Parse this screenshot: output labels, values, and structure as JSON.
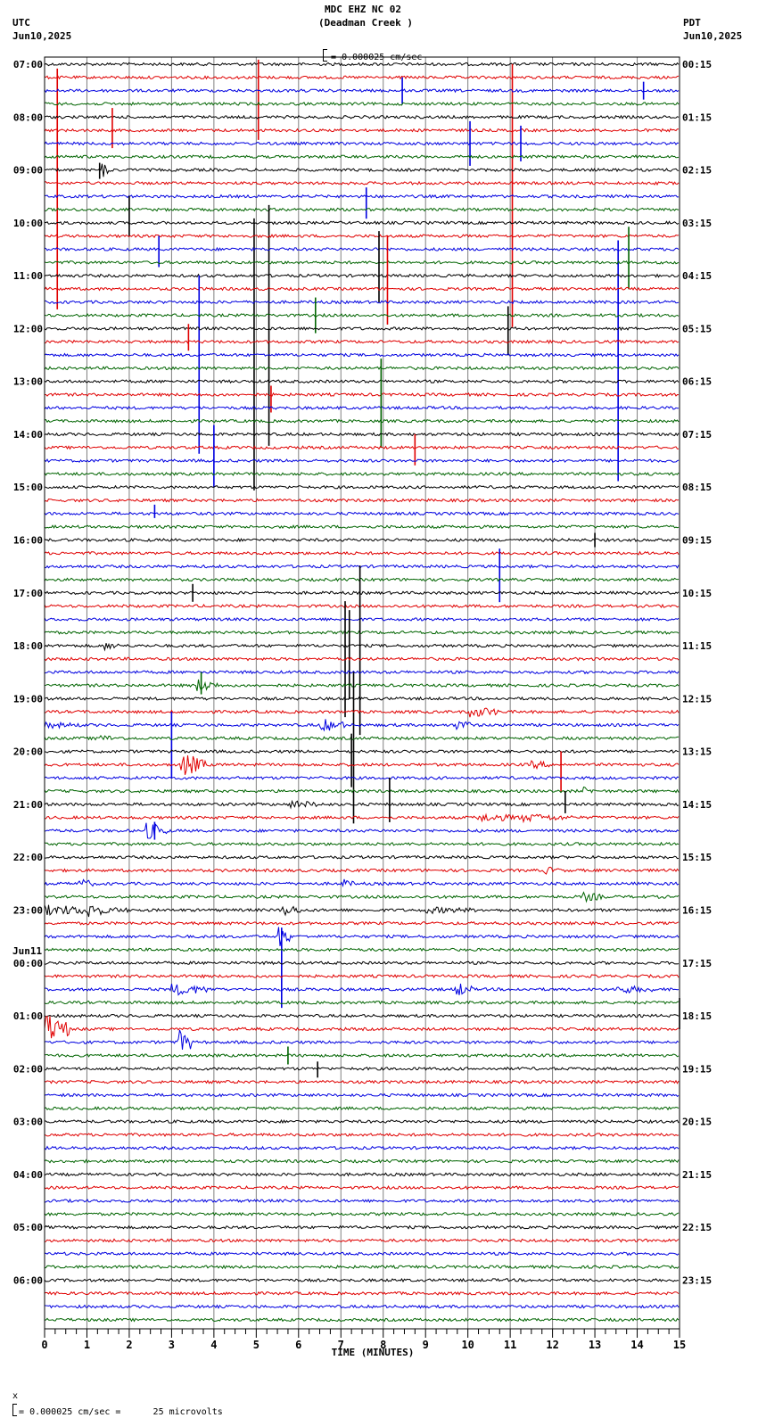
{
  "header": {
    "station": "MDC EHZ NC 02",
    "location": "(Deadman Creek )",
    "left_tz": "UTC",
    "left_date": "Jun10,2025",
    "right_tz": "PDT",
    "right_date": "Jun10,2025",
    "scale_text": "= 0.000025 cm/sec"
  },
  "footer": {
    "xlabel": "TIME (MINUTES)",
    "scale_note": "= 0.000025 cm/sec =      25 microvolts",
    "scale_prefix": "x"
  },
  "colors": {
    "trace_cycle": [
      "#000000",
      "#e00000",
      "#0000e0",
      "#006400"
    ],
    "grid": "#808080",
    "frame": "#000000"
  },
  "chart_data": {
    "type": "line",
    "title": "MDC EHZ NC 02 (Deadman Creek ) — helicorder 24h",
    "xlabel": "TIME (MINUTES)",
    "ylabel": "",
    "xlim": [
      0,
      15
    ],
    "x_ticks": [
      0,
      1,
      2,
      3,
      4,
      5,
      6,
      7,
      8,
      9,
      10,
      11,
      12,
      13,
      14,
      15
    ],
    "grid": true,
    "traces_per_hour": 4,
    "trace_count": 96,
    "left_labels": [
      {
        "row": 0,
        "text": "07:00"
      },
      {
        "row": 4,
        "text": "08:00"
      },
      {
        "row": 8,
        "text": "09:00"
      },
      {
        "row": 12,
        "text": "10:00"
      },
      {
        "row": 16,
        "text": "11:00"
      },
      {
        "row": 20,
        "text": "12:00"
      },
      {
        "row": 24,
        "text": "13:00"
      },
      {
        "row": 28,
        "text": "14:00"
      },
      {
        "row": 32,
        "text": "15:00"
      },
      {
        "row": 36,
        "text": "16:00"
      },
      {
        "row": 40,
        "text": "17:00"
      },
      {
        "row": 44,
        "text": "18:00"
      },
      {
        "row": 48,
        "text": "19:00"
      },
      {
        "row": 52,
        "text": "20:00"
      },
      {
        "row": 56,
        "text": "21:00"
      },
      {
        "row": 60,
        "text": "22:00"
      },
      {
        "row": 64,
        "text": "23:00"
      },
      {
        "row": 68,
        "text": "00:00",
        "date": "Jun11"
      },
      {
        "row": 72,
        "text": "01:00"
      },
      {
        "row": 76,
        "text": "02:00"
      },
      {
        "row": 80,
        "text": "03:00"
      },
      {
        "row": 84,
        "text": "04:00"
      },
      {
        "row": 88,
        "text": "05:00"
      },
      {
        "row": 92,
        "text": "06:00"
      }
    ],
    "right_labels": [
      {
        "row": 0,
        "text": "00:15"
      },
      {
        "row": 4,
        "text": "01:15"
      },
      {
        "row": 8,
        "text": "02:15"
      },
      {
        "row": 12,
        "text": "03:15"
      },
      {
        "row": 16,
        "text": "04:15"
      },
      {
        "row": 20,
        "text": "05:15"
      },
      {
        "row": 24,
        "text": "06:15"
      },
      {
        "row": 28,
        "text": "07:15"
      },
      {
        "row": 32,
        "text": "08:15"
      },
      {
        "row": 36,
        "text": "09:15"
      },
      {
        "row": 40,
        "text": "10:15"
      },
      {
        "row": 44,
        "text": "11:15"
      },
      {
        "row": 48,
        "text": "12:15"
      },
      {
        "row": 52,
        "text": "13:15"
      },
      {
        "row": 56,
        "text": "14:15"
      },
      {
        "row": 60,
        "text": "15:15"
      },
      {
        "row": 64,
        "text": "16:15"
      },
      {
        "row": 68,
        "text": "17:15"
      },
      {
        "row": 72,
        "text": "18:15"
      },
      {
        "row": 76,
        "text": "19:15"
      },
      {
        "row": 80,
        "text": "20:15"
      },
      {
        "row": 84,
        "text": "21:15"
      },
      {
        "row": 88,
        "text": "22:15"
      },
      {
        "row": 92,
        "text": "23:15"
      }
    ],
    "spikes": [
      {
        "row": 1,
        "min": 0.3,
        "up": 10,
        "down": 260
      },
      {
        "row": 1,
        "min": 5.05,
        "up": 20,
        "down": 70
      },
      {
        "row": 1,
        "min": 11.05,
        "up": 15,
        "down": 280
      },
      {
        "row": 2,
        "min": 8.45,
        "up": 15,
        "down": 15
      },
      {
        "row": 2,
        "min": 14.15,
        "up": 10,
        "down": 10
      },
      {
        "row": 5,
        "min": 1.6,
        "up": 25,
        "down": 20
      },
      {
        "row": 6,
        "min": 10.05,
        "up": 25,
        "down": 25
      },
      {
        "row": 6,
        "min": 11.25,
        "up": 20,
        "down": 20
      },
      {
        "row": 8,
        "min": 1.3,
        "up": 8,
        "down": 10
      },
      {
        "row": 10,
        "min": 7.6,
        "up": 10,
        "down": 25
      },
      {
        "row": 12,
        "min": 2.0,
        "up": 30,
        "down": 15
      },
      {
        "row": 12,
        "min": 5.3,
        "up": 20,
        "down": 250
      },
      {
        "row": 12,
        "min": 4.95,
        "up": 5,
        "down": 300
      },
      {
        "row": 14,
        "min": 2.7,
        "up": 15,
        "down": 20
      },
      {
        "row": 14,
        "min": 13.55,
        "up": 10,
        "down": 260
      },
      {
        "row": 15,
        "min": 13.8,
        "up": 40,
        "down": 30
      },
      {
        "row": 16,
        "min": 7.9,
        "up": 50,
        "down": 30
      },
      {
        "row": 17,
        "min": 8.1,
        "up": 60,
        "down": 40
      },
      {
        "row": 18,
        "min": 3.65,
        "up": 30,
        "down": 170
      },
      {
        "row": 19,
        "min": 6.4,
        "up": 20,
        "down": 20
      },
      {
        "row": 20,
        "min": 10.95,
        "up": 25,
        "down": 30
      },
      {
        "row": 21,
        "min": 3.4,
        "up": 20,
        "down": 10
      },
      {
        "row": 25,
        "min": 5.35,
        "up": 10,
        "down": 20
      },
      {
        "row": 27,
        "min": 7.95,
        "up": 70,
        "down": 30
      },
      {
        "row": 29,
        "min": 8.75,
        "up": 15,
        "down": 20
      },
      {
        "row": 30,
        "min": 4.0,
        "up": 40,
        "down": 30
      },
      {
        "row": 34,
        "min": 2.6,
        "up": 10,
        "down": 5
      },
      {
        "row": 36,
        "min": 13.0,
        "up": 8,
        "down": 8
      },
      {
        "row": 38,
        "min": 10.75,
        "up": 20,
        "down": 40
      },
      {
        "row": 40,
        "min": 3.5,
        "up": 10,
        "down": 10
      },
      {
        "row": 44,
        "min": 7.1,
        "up": 50,
        "down": 80
      },
      {
        "row": 44,
        "min": 7.45,
        "up": 90,
        "down": 100
      },
      {
        "row": 44,
        "min": 7.2,
        "up": 40,
        "down": 60
      },
      {
        "row": 47,
        "min": 3.7,
        "up": 15,
        "down": 10
      },
      {
        "row": 48,
        "min": 7.3,
        "up": 30,
        "down": 140
      },
      {
        "row": 50,
        "min": 3.0,
        "up": 15,
        "down": 60
      },
      {
        "row": 52,
        "min": 7.25,
        "up": 20,
        "down": 40
      },
      {
        "row": 53,
        "min": 12.2,
        "up": 15,
        "down": 30
      },
      {
        "row": 56,
        "min": 8.15,
        "up": 30,
        "down": 20
      },
      {
        "row": 56,
        "min": 12.3,
        "up": 15,
        "down": 10
      },
      {
        "row": 58,
        "min": 2.6,
        "up": 10,
        "down": 10
      },
      {
        "row": 66,
        "min": 5.6,
        "up": 10,
        "down": 80
      },
      {
        "row": 72,
        "min": 15.0,
        "up": 20,
        "down": 15
      },
      {
        "row": 75,
        "min": 5.75,
        "up": 10,
        "down": 10
      },
      {
        "row": 76,
        "min": 6.45,
        "up": 8,
        "down": 10
      }
    ],
    "bursts": [
      {
        "row": 8,
        "min": 1.3,
        "dur": 0.3,
        "amp": 10
      },
      {
        "row": 44,
        "min": 1.4,
        "dur": 0.4,
        "amp": 5
      },
      {
        "row": 47,
        "min": 3.6,
        "dur": 0.5,
        "amp": 8
      },
      {
        "row": 49,
        "min": 10.0,
        "dur": 0.8,
        "amp": 7
      },
      {
        "row": 50,
        "min": 6.5,
        "dur": 0.6,
        "amp": 8
      },
      {
        "row": 50,
        "min": 9.7,
        "dur": 0.5,
        "amp": 6
      },
      {
        "row": 50,
        "min": 0.0,
        "dur": 1.0,
        "amp": 4
      },
      {
        "row": 51,
        "min": 1.2,
        "dur": 0.8,
        "amp": 4
      },
      {
        "row": 53,
        "min": 3.2,
        "dur": 0.6,
        "amp": 14
      },
      {
        "row": 53,
        "min": 11.5,
        "dur": 0.5,
        "amp": 5
      },
      {
        "row": 55,
        "min": 12.7,
        "dur": 0.3,
        "amp": 5
      },
      {
        "row": 56,
        "min": 5.8,
        "dur": 0.8,
        "amp": 5
      },
      {
        "row": 57,
        "min": 10.2,
        "dur": 1.3,
        "amp": 5
      },
      {
        "row": 57,
        "min": 11.3,
        "dur": 1.2,
        "amp": 5
      },
      {
        "row": 58,
        "min": 2.4,
        "dur": 0.5,
        "amp": 10
      },
      {
        "row": 61,
        "min": 11.8,
        "dur": 0.4,
        "amp": 5
      },
      {
        "row": 62,
        "min": 0.8,
        "dur": 0.4,
        "amp": 6
      },
      {
        "row": 62,
        "min": 7.0,
        "dur": 0.3,
        "amp": 6
      },
      {
        "row": 63,
        "min": 12.7,
        "dur": 0.5,
        "amp": 6
      },
      {
        "row": 64,
        "min": 0.0,
        "dur": 2.0,
        "amp": 6
      },
      {
        "row": 64,
        "min": 1.0,
        "dur": 0.4,
        "amp": 10
      },
      {
        "row": 64,
        "min": 5.6,
        "dur": 0.5,
        "amp": 7
      },
      {
        "row": 64,
        "min": 9.0,
        "dur": 1.5,
        "amp": 4
      },
      {
        "row": 66,
        "min": 5.5,
        "dur": 0.3,
        "amp": 14
      },
      {
        "row": 70,
        "min": 3.0,
        "dur": 1.0,
        "amp": 7
      },
      {
        "row": 70,
        "min": 9.7,
        "dur": 0.4,
        "amp": 9
      },
      {
        "row": 70,
        "min": 13.5,
        "dur": 1.0,
        "amp": 5
      },
      {
        "row": 73,
        "min": 0.0,
        "dur": 0.6,
        "amp": 18
      },
      {
        "row": 74,
        "min": 3.1,
        "dur": 0.4,
        "amp": 16
      }
    ]
  }
}
